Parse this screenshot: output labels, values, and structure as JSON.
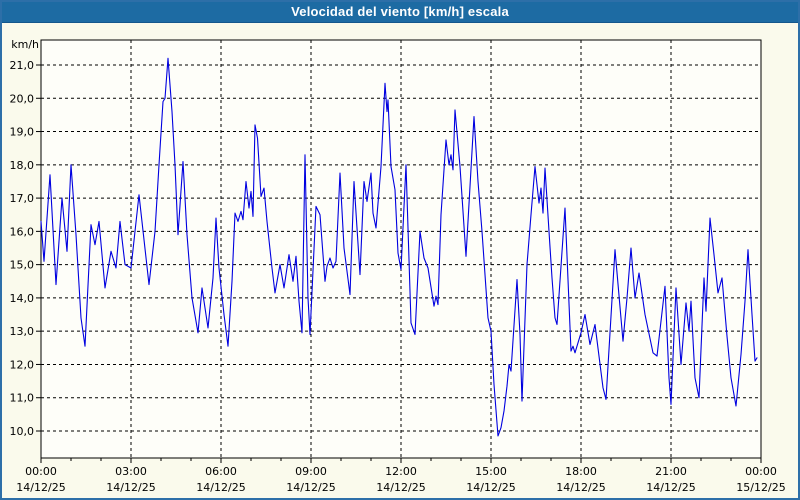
{
  "window": {
    "title": "Velocidad del viento [km/h] escala"
  },
  "colors": {
    "title_bar": "#1d6ba3",
    "title_text": "#ffffff",
    "frame_border": "#2d6fa8",
    "page_bg": "#fafaec",
    "plot_bg": "#fefef9",
    "grid": "#000000",
    "axis_text": "#000000",
    "line": "#0000e0"
  },
  "chart_data": {
    "type": "line",
    "title": "Velocidad del viento [km/h] escala",
    "unit_label": "km/h",
    "xlabel": "",
    "ylabel": "km/h",
    "grid": true,
    "legend": "none",
    "ylim": [
      9.2,
      21.75
    ],
    "xlim_minutes": [
      0,
      1440
    ],
    "y_ticks": [
      {
        "value": 21.0,
        "label": "21,0"
      },
      {
        "value": 20.0,
        "label": "20,0"
      },
      {
        "value": 19.0,
        "label": "19,0"
      },
      {
        "value": 18.0,
        "label": "18,0"
      },
      {
        "value": 17.0,
        "label": "17,0"
      },
      {
        "value": 16.0,
        "label": "16,0"
      },
      {
        "value": 15.0,
        "label": "15,0"
      },
      {
        "value": 14.0,
        "label": "14,0"
      },
      {
        "value": 13.0,
        "label": "13,0"
      },
      {
        "value": 12.0,
        "label": "12,0"
      },
      {
        "value": 11.0,
        "label": "11,0"
      },
      {
        "value": 10.0,
        "label": "10,0"
      }
    ],
    "x_ticks": [
      {
        "minutes": 0,
        "time": "00:00",
        "date": "14/12/25"
      },
      {
        "minutes": 180,
        "time": "03:00",
        "date": "14/12/25"
      },
      {
        "minutes": 360,
        "time": "06:00",
        "date": "14/12/25"
      },
      {
        "minutes": 540,
        "time": "09:00",
        "date": "14/12/25"
      },
      {
        "minutes": 720,
        "time": "12:00",
        "date": "14/12/25"
      },
      {
        "minutes": 900,
        "time": "15:00",
        "date": "14/12/25"
      },
      {
        "minutes": 1080,
        "time": "18:00",
        "date": "14/12/25"
      },
      {
        "minutes": 1260,
        "time": "21:00",
        "date": "14/12/25"
      },
      {
        "minutes": 1440,
        "time": "00:00",
        "date": "15/12/25"
      }
    ],
    "minor_x_tick_every_minutes": 60,
    "series": [
      {
        "name": "Velocidad del viento",
        "color": "#0000e0",
        "points": [
          [
            0,
            16.3
          ],
          [
            6,
            15.1
          ],
          [
            18,
            17.7
          ],
          [
            30,
            14.4
          ],
          [
            42,
            17.0
          ],
          [
            52,
            15.4
          ],
          [
            60,
            18.0
          ],
          [
            70,
            15.9
          ],
          [
            80,
            13.4
          ],
          [
            88,
            12.55
          ],
          [
            100,
            16.2
          ],
          [
            108,
            15.6
          ],
          [
            116,
            16.3
          ],
          [
            128,
            14.3
          ],
          [
            140,
            15.4
          ],
          [
            150,
            14.9
          ],
          [
            158,
            16.3
          ],
          [
            168,
            15.0
          ],
          [
            180,
            14.9
          ],
          [
            196,
            17.1
          ],
          [
            216,
            14.4
          ],
          [
            228,
            16.0
          ],
          [
            236,
            18.0
          ],
          [
            244,
            19.9
          ],
          [
            248,
            20.0
          ],
          [
            254,
            21.2
          ],
          [
            262,
            19.6
          ],
          [
            268,
            18.0
          ],
          [
            274,
            15.9
          ],
          [
            284,
            18.1
          ],
          [
            292,
            15.9
          ],
          [
            302,
            14.0
          ],
          [
            314,
            12.95
          ],
          [
            322,
            14.3
          ],
          [
            334,
            13.1
          ],
          [
            344,
            14.6
          ],
          [
            350,
            16.4
          ],
          [
            356,
            14.9
          ],
          [
            366,
            13.5
          ],
          [
            374,
            12.55
          ],
          [
            382,
            14.5
          ],
          [
            388,
            16.55
          ],
          [
            394,
            16.3
          ],
          [
            400,
            16.6
          ],
          [
            404,
            16.35
          ],
          [
            410,
            17.5
          ],
          [
            416,
            16.7
          ],
          [
            420,
            17.2
          ],
          [
            424,
            16.45
          ],
          [
            428,
            19.2
          ],
          [
            433,
            18.8
          ],
          [
            440,
            17.05
          ],
          [
            446,
            17.3
          ],
          [
            452,
            16.3
          ],
          [
            462,
            14.9
          ],
          [
            468,
            14.15
          ],
          [
            478,
            15.0
          ],
          [
            486,
            14.3
          ],
          [
            496,
            15.3
          ],
          [
            504,
            14.5
          ],
          [
            510,
            15.25
          ],
          [
            516,
            13.9
          ],
          [
            522,
            12.95
          ],
          [
            528,
            18.3
          ],
          [
            534,
            14.0
          ],
          [
            538,
            12.9
          ],
          [
            550,
            16.75
          ],
          [
            558,
            16.5
          ],
          [
            568,
            14.5
          ],
          [
            572,
            14.95
          ],
          [
            578,
            15.2
          ],
          [
            584,
            14.9
          ],
          [
            590,
            15.1
          ],
          [
            598,
            17.75
          ],
          [
            606,
            15.5
          ],
          [
            618,
            14.1
          ],
          [
            626,
            17.5
          ],
          [
            638,
            14.7
          ],
          [
            646,
            17.5
          ],
          [
            652,
            16.9
          ],
          [
            660,
            17.75
          ],
          [
            664,
            16.55
          ],
          [
            670,
            16.1
          ],
          [
            680,
            17.95
          ],
          [
            688,
            20.45
          ],
          [
            692,
            19.6
          ],
          [
            694,
            19.95
          ],
          [
            700,
            17.95
          ],
          [
            708,
            17.25
          ],
          [
            714,
            15.35
          ],
          [
            720,
            14.85
          ],
          [
            730,
            18.0
          ],
          [
            740,
            13.25
          ],
          [
            748,
            12.9
          ],
          [
            758,
            16.0
          ],
          [
            766,
            15.2
          ],
          [
            774,
            14.9
          ],
          [
            786,
            13.75
          ],
          [
            790,
            14.05
          ],
          [
            794,
            13.8
          ],
          [
            800,
            16.5
          ],
          [
            810,
            18.75
          ],
          [
            816,
            18.0
          ],
          [
            820,
            18.3
          ],
          [
            824,
            17.85
          ],
          [
            828,
            19.65
          ],
          [
            838,
            17.95
          ],
          [
            850,
            15.25
          ],
          [
            866,
            19.45
          ],
          [
            874,
            17.5
          ],
          [
            882,
            16.0
          ],
          [
            894,
            13.4
          ],
          [
            900,
            13.0
          ],
          [
            906,
            11.4
          ],
          [
            914,
            9.85
          ],
          [
            920,
            10.1
          ],
          [
            926,
            10.6
          ],
          [
            932,
            11.35
          ],
          [
            936,
            12.0
          ],
          [
            940,
            11.8
          ],
          [
            952,
            14.55
          ],
          [
            958,
            12.9
          ],
          [
            962,
            10.9
          ],
          [
            972,
            15.0
          ],
          [
            980,
            16.5
          ],
          [
            988,
            17.95
          ],
          [
            996,
            16.85
          ],
          [
            1000,
            17.3
          ],
          [
            1004,
            16.55
          ],
          [
            1008,
            17.9
          ],
          [
            1016,
            16.0
          ],
          [
            1022,
            14.6
          ],
          [
            1028,
            13.4
          ],
          [
            1032,
            13.2
          ],
          [
            1048,
            16.7
          ],
          [
            1060,
            12.4
          ],
          [
            1064,
            12.55
          ],
          [
            1068,
            12.35
          ],
          [
            1080,
            12.95
          ],
          [
            1088,
            13.5
          ],
          [
            1098,
            12.6
          ],
          [
            1108,
            13.2
          ],
          [
            1124,
            11.3
          ],
          [
            1130,
            10.95
          ],
          [
            1148,
            15.45
          ],
          [
            1164,
            12.7
          ],
          [
            1172,
            14.0
          ],
          [
            1180,
            15.5
          ],
          [
            1188,
            14.0
          ],
          [
            1196,
            14.75
          ],
          [
            1208,
            13.5
          ],
          [
            1224,
            12.35
          ],
          [
            1232,
            12.25
          ],
          [
            1248,
            14.35
          ],
          [
            1256,
            11.6
          ],
          [
            1260,
            10.8
          ],
          [
            1270,
            14.3
          ],
          [
            1280,
            12.0
          ],
          [
            1290,
            13.85
          ],
          [
            1296,
            13.0
          ],
          [
            1300,
            13.9
          ],
          [
            1308,
            11.6
          ],
          [
            1316,
            11.0
          ],
          [
            1326,
            14.6
          ],
          [
            1330,
            13.6
          ],
          [
            1338,
            16.4
          ],
          [
            1346,
            15.3
          ],
          [
            1354,
            14.15
          ],
          [
            1362,
            14.6
          ],
          [
            1372,
            12.85
          ],
          [
            1380,
            11.6
          ],
          [
            1390,
            10.75
          ],
          [
            1400,
            12.3
          ],
          [
            1408,
            13.9
          ],
          [
            1414,
            15.45
          ],
          [
            1422,
            13.5
          ],
          [
            1428,
            12.1
          ],
          [
            1432,
            12.2
          ]
        ]
      }
    ]
  }
}
